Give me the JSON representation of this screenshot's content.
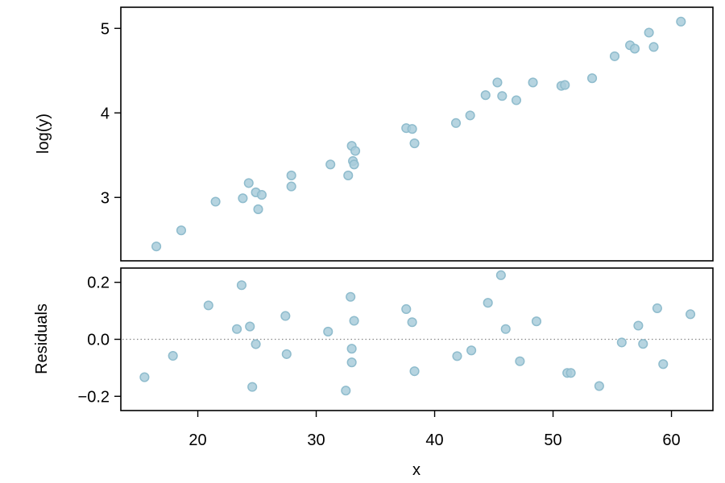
{
  "chart_data": [
    {
      "type": "scatter",
      "title": "",
      "xlabel": "",
      "ylabel": "log(y)",
      "xlim": [
        13.5,
        63.5
      ],
      "ylim": [
        2.25,
        5.25
      ],
      "yticks": [
        3,
        4,
        5
      ],
      "ytick_labels": [
        "3",
        "4",
        "5"
      ],
      "grid": false,
      "point_color": "#a9cddb",
      "x": [
        16.5,
        18.6,
        21.5,
        23.8,
        24.3,
        24.9,
        25.1,
        25.4,
        27.9,
        27.9,
        31.2,
        32.7,
        33.0,
        33.1,
        33.2,
        33.3,
        37.6,
        38.1,
        38.3,
        41.8,
        43.0,
        44.3,
        45.3,
        45.7,
        46.9,
        48.3,
        50.7,
        51.0,
        53.3,
        55.2,
        56.5,
        56.9,
        58.1,
        58.5,
        60.8
      ],
      "y": [
        2.42,
        2.61,
        2.95,
        2.99,
        3.17,
        3.06,
        2.86,
        3.03,
        3.26,
        3.13,
        3.39,
        3.26,
        3.61,
        3.43,
        3.39,
        3.55,
        3.82,
        3.81,
        3.64,
        3.88,
        3.97,
        4.21,
        4.36,
        4.2,
        4.15,
        4.36,
        4.32,
        4.33,
        4.41,
        4.67,
        4.8,
        4.76,
        4.95,
        4.78,
        5.08
      ]
    },
    {
      "type": "scatter",
      "title": "",
      "xlabel": "x",
      "ylabel": "Residuals",
      "xlim": [
        13.5,
        63.5
      ],
      "ylim": [
        -0.25,
        0.25
      ],
      "xticks": [
        20,
        30,
        40,
        50,
        60
      ],
      "xtick_labels": [
        "20",
        "30",
        "40",
        "50",
        "60"
      ],
      "yticks": [
        -0.2,
        0.0,
        0.2
      ],
      "ytick_labels": [
        "−0.2",
        "0.0",
        "0.2"
      ],
      "reference_line": {
        "y": 0,
        "style": "dotted",
        "color": "#8a8a8a"
      },
      "grid": false,
      "point_color": "#a9cddb",
      "x": [
        15.5,
        17.9,
        20.9,
        23.3,
        23.7,
        24.4,
        24.6,
        24.9,
        27.4,
        27.5,
        31.0,
        32.5,
        32.9,
        33.0,
        33.0,
        33.2,
        37.6,
        38.1,
        38.3,
        41.9,
        43.1,
        44.5,
        45.6,
        46.0,
        47.2,
        48.6,
        51.2,
        51.5,
        53.9,
        55.8,
        57.2,
        57.6,
        58.8,
        59.3,
        61.6
      ],
      "y": [
        -0.133,
        -0.058,
        0.119,
        0.036,
        0.19,
        0.045,
        -0.167,
        -0.017,
        0.082,
        -0.052,
        0.027,
        -0.18,
        0.149,
        -0.033,
        -0.081,
        0.065,
        0.106,
        0.06,
        -0.112,
        -0.059,
        -0.039,
        0.128,
        0.225,
        0.036,
        -0.077,
        0.063,
        -0.118,
        -0.118,
        -0.164,
        -0.011,
        0.048,
        -0.016,
        0.109,
        -0.087,
        0.088
      ]
    }
  ]
}
